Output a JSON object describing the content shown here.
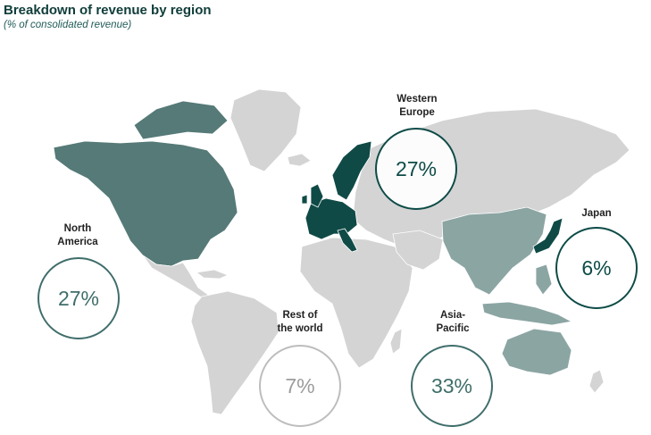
{
  "header": {
    "title": "Breakdown of revenue by region",
    "subtitle": "(% of consolidated revenue)"
  },
  "colors": {
    "base_land": "#d4d4d4",
    "north_america": "#557a77",
    "western_europe": "#0f4a46",
    "asia_pacific": "#8ba5a3",
    "japan": "#0f4a46",
    "rest_of_world": "#d4d4d4"
  },
  "regions": {
    "north_america": {
      "label_line1": "North",
      "label_line2": "America",
      "value": "27%",
      "share": 27
    },
    "western_europe": {
      "label_line1": "Western",
      "label_line2": "Europe",
      "value": "27%",
      "share": 27
    },
    "japan": {
      "label_line1": "Japan",
      "label_line2": "",
      "value": "6%",
      "share": 6
    },
    "rest_of_world": {
      "label_line1": "Rest of",
      "label_line2": "the world",
      "value": "7%",
      "share": 7
    },
    "asia_pacific": {
      "label_line1": "Asia-",
      "label_line2": "Pacific",
      "value": "33%",
      "share": 33
    }
  }
}
